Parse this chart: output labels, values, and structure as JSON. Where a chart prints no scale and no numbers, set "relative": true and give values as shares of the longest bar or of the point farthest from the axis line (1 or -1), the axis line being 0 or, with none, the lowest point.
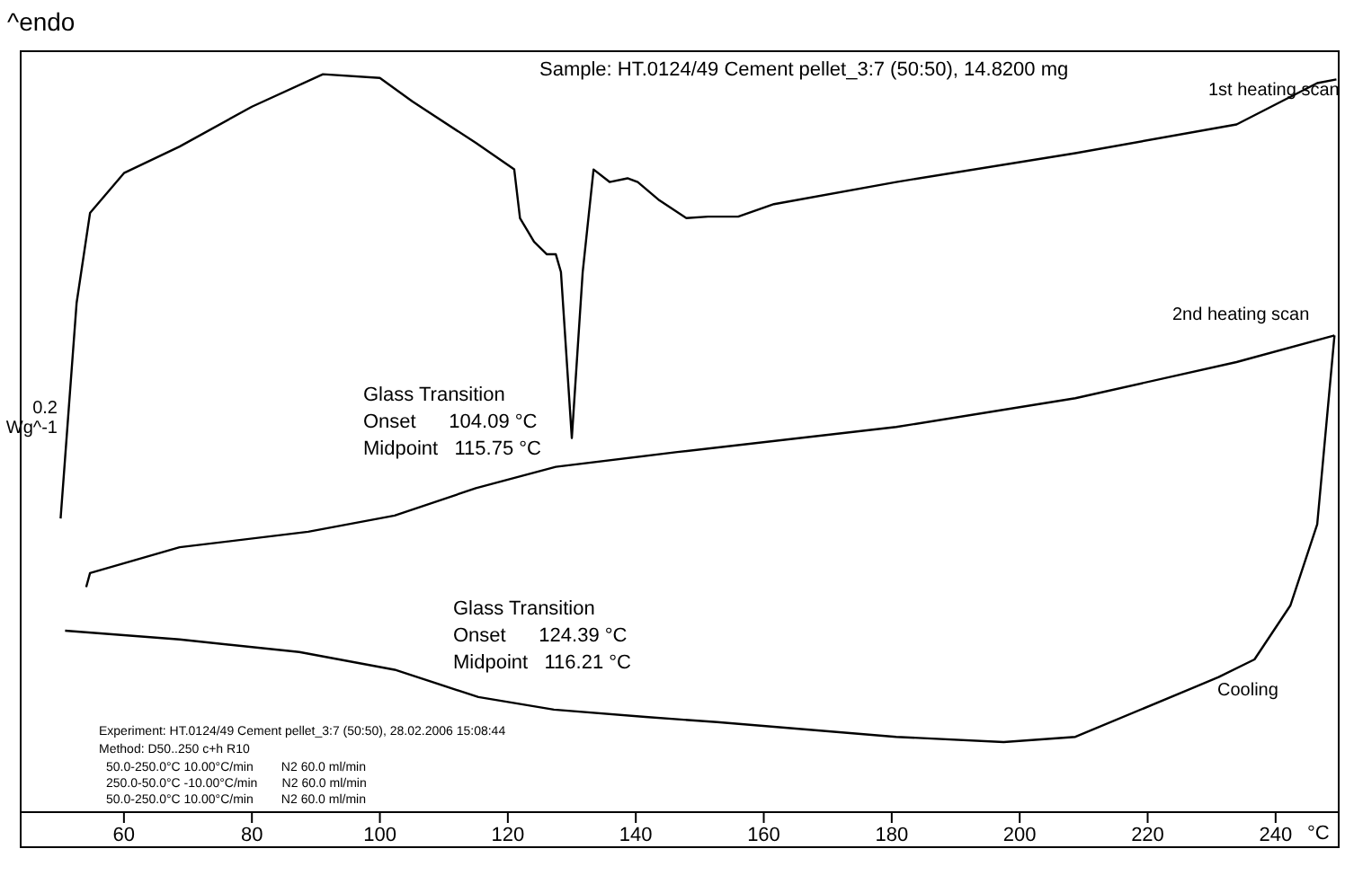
{
  "chart_data": {
    "type": "line",
    "relative": true,
    "title": "Sample: HT.0124/49 Cement pellet_3:7 (50:50), 14.8200 mg",
    "xlabel": "°C",
    "ylabel": "0.2 Wg^-1",
    "xlim": [
      44,
      250
    ],
    "xticks": [
      60,
      80,
      100,
      120,
      140,
      160,
      180,
      200,
      220,
      240
    ],
    "marker": "none",
    "line_style": "solid",
    "series": [
      {
        "name": "1st heating scan",
        "color": "#000000",
        "x": [
          50.1,
          52.6,
          54.7,
          60,
          68.7,
          80,
          91.1,
          100,
          105.1,
          115,
          121.0,
          121.9,
          124.1,
          126.1,
          127.5,
          128.3,
          130.0,
          131.7,
          133.4,
          135.9,
          138.7,
          140.3,
          143.7,
          147.9,
          151.3,
          156.0,
          161.6,
          180.7,
          208.7,
          233.9,
          246.5,
          249.5
        ],
        "values": [
          0.398,
          0.69,
          0.812,
          0.866,
          0.902,
          0.956,
          1,
          0.995,
          0.963,
          0.907,
          0.871,
          0.805,
          0.773,
          0.756,
          0.756,
          0.732,
          0.507,
          0.732,
          0.871,
          0.854,
          0.859,
          0.854,
          0.829,
          0.805,
          0.807,
          0.807,
          0.824,
          0.854,
          0.893,
          0.932,
          0.988,
          0.993
        ]
      },
      {
        "name": "2nd heating scan",
        "color": "#000000",
        "x": [
          54.1,
          54.7,
          68.7,
          88.8,
          102.3,
          115,
          127.5,
          146.5,
          180.7,
          208.7,
          233.9,
          249.2
        ],
        "values": [
          0.305,
          0.324,
          0.359,
          0.38,
          0.402,
          0.439,
          0.468,
          0.488,
          0.522,
          0.561,
          0.61,
          0.646
        ]
      },
      {
        "name": "Cooling",
        "color": "#000000",
        "x": [
          249.2,
          246.5,
          242.3,
          236.7,
          231.1,
          208.7,
          197.5,
          180.7,
          152.7,
          141.5,
          127.2,
          115.4,
          102.3,
          87.4,
          68.7,
          50.8
        ],
        "values": [
          0.646,
          0.39,
          0.28,
          0.207,
          0.183,
          0.102,
          0.095,
          0.102,
          0.122,
          0.129,
          0.139,
          0.156,
          0.193,
          0.217,
          0.234,
          0.246
        ]
      }
    ],
    "annotations": [
      "^endo",
      "Glass Transition",
      "Onset      104.09 °C",
      "Midpoint   115.75 °C",
      "Glass Transition",
      "Onset      124.39 °C",
      "Midpoint   116.21 °C",
      "Experiment: HT.0124/49 Cement pellet_3:7 (50:50), 28.02.2006 15:08:44",
      "Method: D50..250 c+h R10",
      "50.0-250.0°C 10.00°C/min        N2 60.0 ml/min",
      "250.0-50.0°C -10.00°C/min       N2 60.0 ml/min",
      "50.0-250.0°C 10.00°C/min        N2 60.0 ml/min"
    ]
  }
}
